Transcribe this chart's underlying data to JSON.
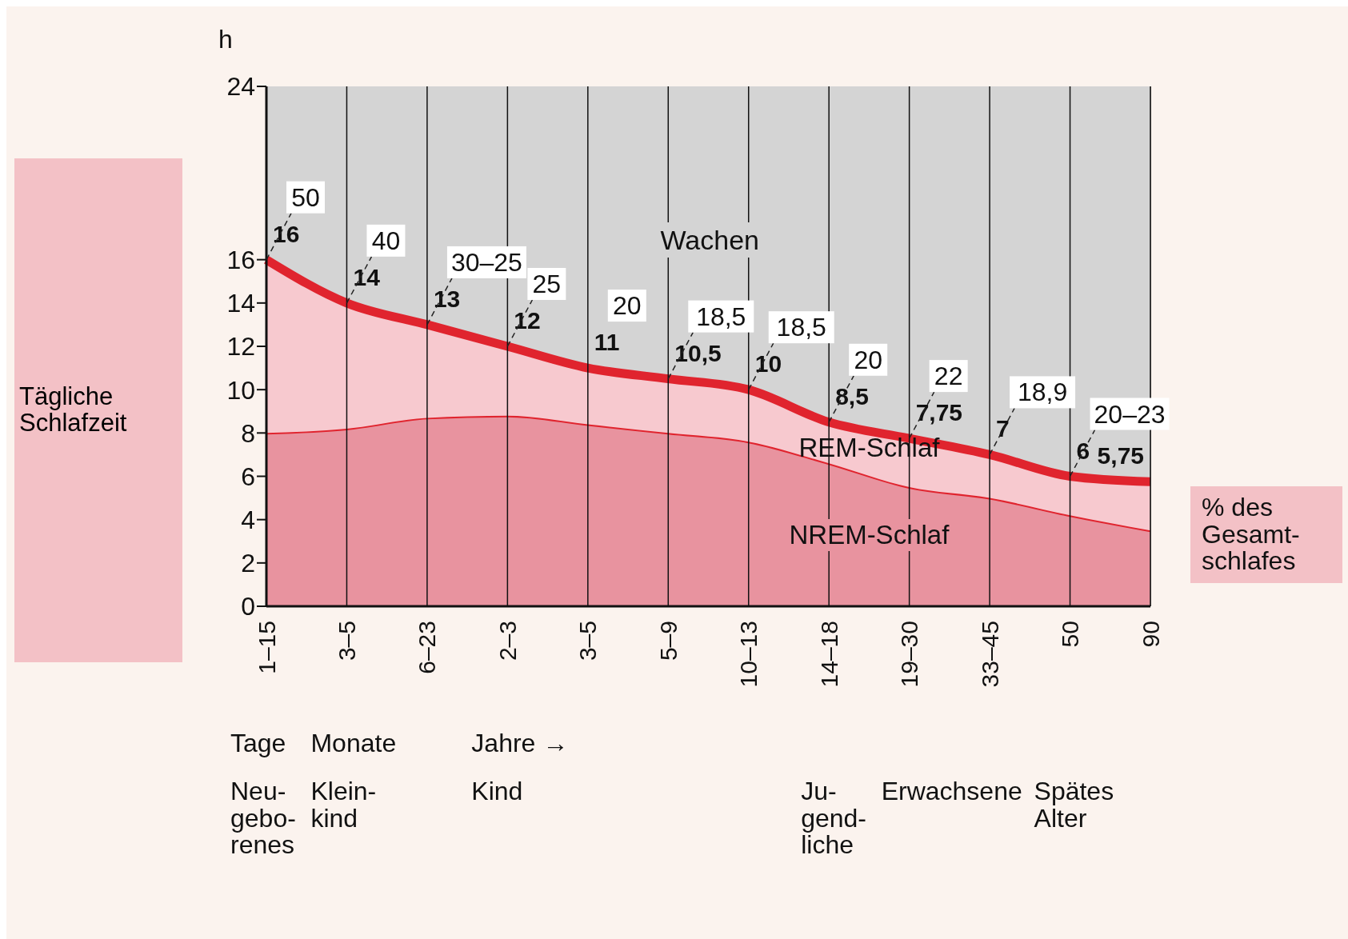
{
  "chart_data": {
    "type": "area",
    "stacked": true,
    "ylabel": "Tägliche Schlafzeit",
    "categories": [
      "1–15",
      "3–5",
      "6–23",
      "2–3",
      "3–5",
      "5–9",
      "10–13",
      "14–18",
      "19–30",
      "33–45",
      "50",
      "90"
    ],
    "series": [
      {
        "name": "NREM-Schlaf",
        "color": "#e8939f",
        "values": [
          8.0,
          8.2,
          8.7,
          8.8,
          8.4,
          8.0,
          7.6,
          6.6,
          5.5,
          5.0,
          4.2,
          3.5
        ]
      },
      {
        "name": "REM-Schlaf",
        "color": "#f7c9cf",
        "values": [
          8.0,
          5.8,
          4.3,
          3.2,
          2.6,
          2.5,
          2.4,
          1.9,
          2.25,
          2.0,
          1.8,
          2.25
        ]
      }
    ],
    "totals": [
      "16",
      "14",
      "13",
      "12",
      "11",
      "10,5",
      "10",
      "8,5",
      "7,75",
      "7",
      "6",
      "5,75"
    ],
    "bands": [
      {
        "axis": "y",
        "from": 0,
        "to": 24,
        "label": "Wachen",
        "color": "#d4d4d4"
      }
    ],
    "ylim": [
      0,
      24
    ],
    "yticks": [
      0,
      2,
      4,
      6,
      8,
      10,
      12,
      14,
      16,
      24
    ],
    "grid": "x",
    "legend": false,
    "annotations": [
      "h",
      "Tage",
      "Monate",
      "Jahre →",
      "Neu-gebo-renes",
      "Klein-kind",
      "Kind",
      "Ju-gend-liche",
      "Erwachsene",
      "Spätes Alter",
      "% des Gesamt-schlafes",
      {
        "text": "50",
        "x": "1–15",
        "y": 16
      },
      {
        "text": "40",
        "x": "3–5",
        "y": 14
      },
      {
        "text": "30–25",
        "x": "6–23",
        "y": 13
      },
      {
        "text": "25",
        "x": "2–3",
        "y": 12
      },
      "20",
      {
        "text": "18,5",
        "x": "5–9",
        "y": 10.5
      },
      {
        "text": "18,5",
        "x": "10–13",
        "y": 10
      },
      {
        "text": "20",
        "x": "14–18",
        "y": 8.5
      },
      {
        "text": "22",
        "x": "19–30",
        "y": 7.75
      },
      {
        "text": "18,9",
        "x": "33–45",
        "y": 7
      },
      {
        "text": "20–23",
        "x": "50",
        "y": 6
      }
    ]
  }
}
